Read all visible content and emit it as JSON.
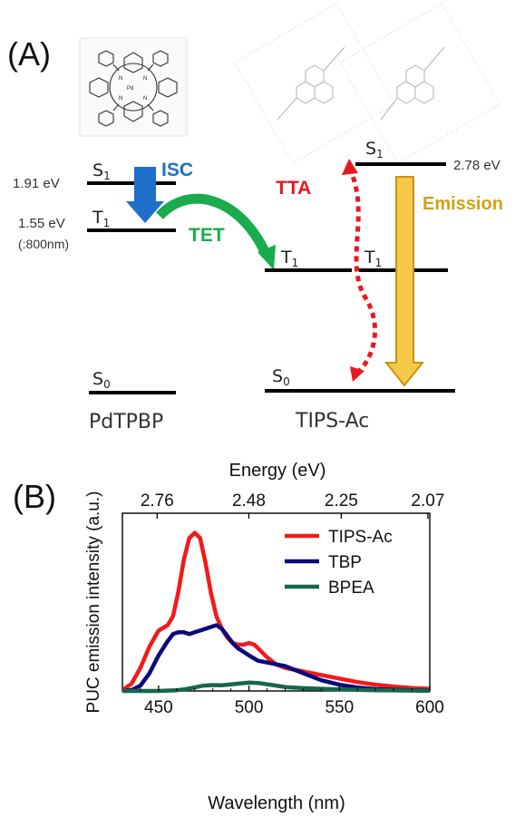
{
  "panel_a": {
    "label": "(A)",
    "pdtpbp": {
      "name": "PdTPBP",
      "s1_energy": "1.91 eV",
      "t1_energy": "1.55 eV",
      "t1_wavelength": "(:800nm)",
      "s1_label": "S",
      "s1_sub": "1",
      "t1_label": "T",
      "t1_sub": "1",
      "s0_label": "S",
      "s0_sub": "0",
      "molecule_atoms": {
        "pd": "Pd",
        "n": "N"
      }
    },
    "tipsac": {
      "name": "TIPS-Ac",
      "s1_energy": "2.78 eV",
      "s1_label": "S",
      "s1_sub": "1",
      "t1_label": "T",
      "t1_sub": "1",
      "s0_label": "S",
      "s0_sub": "0"
    },
    "processes": {
      "isc": "ISC",
      "tet": "TET",
      "tta": "TTA",
      "emission": "Emission"
    },
    "colors": {
      "isc": "#1f6fc9",
      "tet": "#1aab4c",
      "tta": "#e8191d",
      "emission": "#d4a017",
      "emission_fill": "#f7c948"
    }
  },
  "panel_b": {
    "label": "(B)"
  },
  "chart_data": {
    "type": "line",
    "title": "",
    "xlabel": "Wavelength (nm)",
    "ylabel": "PUC emission intensity (a.u.)",
    "top_axis_label": "Energy (eV)",
    "xlim": [
      430,
      600
    ],
    "ylim": [
      0,
      1.0
    ],
    "x_ticks": [
      "450",
      "500",
      "550",
      "600"
    ],
    "top_ticks": [
      "2.76",
      "2.48",
      "2.25",
      "2.07"
    ],
    "legend_position": "top-right",
    "series": [
      {
        "name": "TIPS-Ac",
        "color": "#f21a1a",
        "x": [
          430,
          435,
          440,
          445,
          450,
          455,
          458,
          461,
          464,
          467,
          470,
          473,
          476,
          479,
          482,
          485,
          488,
          491,
          494,
          497,
          500,
          503,
          506,
          510,
          515,
          520,
          525,
          530,
          535,
          540,
          550,
          560,
          570,
          580,
          590,
          600
        ],
        "y": [
          0.005,
          0.04,
          0.13,
          0.25,
          0.34,
          0.37,
          0.42,
          0.56,
          0.74,
          0.86,
          0.89,
          0.86,
          0.72,
          0.55,
          0.42,
          0.35,
          0.3,
          0.27,
          0.26,
          0.26,
          0.27,
          0.26,
          0.23,
          0.19,
          0.15,
          0.13,
          0.12,
          0.11,
          0.1,
          0.09,
          0.07,
          0.05,
          0.035,
          0.025,
          0.017,
          0.012
        ]
      },
      {
        "name": "TBP",
        "color": "#0a0a7a",
        "x": [
          430,
          435,
          440,
          445,
          450,
          455,
          458,
          461,
          464,
          467,
          470,
          473,
          476,
          479,
          482,
          485,
          488,
          491,
          494,
          497,
          500,
          505,
          510,
          515,
          520,
          525,
          530,
          535,
          540,
          550,
          560,
          570,
          580,
          590,
          600
        ],
        "y": [
          0.0,
          0.005,
          0.03,
          0.1,
          0.2,
          0.28,
          0.32,
          0.33,
          0.33,
          0.32,
          0.33,
          0.34,
          0.35,
          0.36,
          0.37,
          0.35,
          0.31,
          0.27,
          0.24,
          0.22,
          0.2,
          0.17,
          0.16,
          0.15,
          0.14,
          0.12,
          0.1,
          0.08,
          0.06,
          0.035,
          0.02,
          0.01,
          0.006,
          0.004,
          0.003
        ]
      },
      {
        "name": "BPEA",
        "color": "#17674a",
        "x": [
          430,
          440,
          450,
          460,
          465,
          470,
          475,
          480,
          485,
          490,
          495,
          500,
          505,
          510,
          515,
          520,
          530,
          540,
          550,
          560,
          570,
          580,
          590,
          600
        ],
        "y": [
          0.0,
          0.0,
          0.0,
          0.004,
          0.01,
          0.02,
          0.03,
          0.033,
          0.032,
          0.037,
          0.042,
          0.047,
          0.045,
          0.038,
          0.03,
          0.022,
          0.016,
          0.012,
          0.009,
          0.006,
          0.004,
          0.003,
          0.002,
          0.001
        ]
      }
    ]
  }
}
